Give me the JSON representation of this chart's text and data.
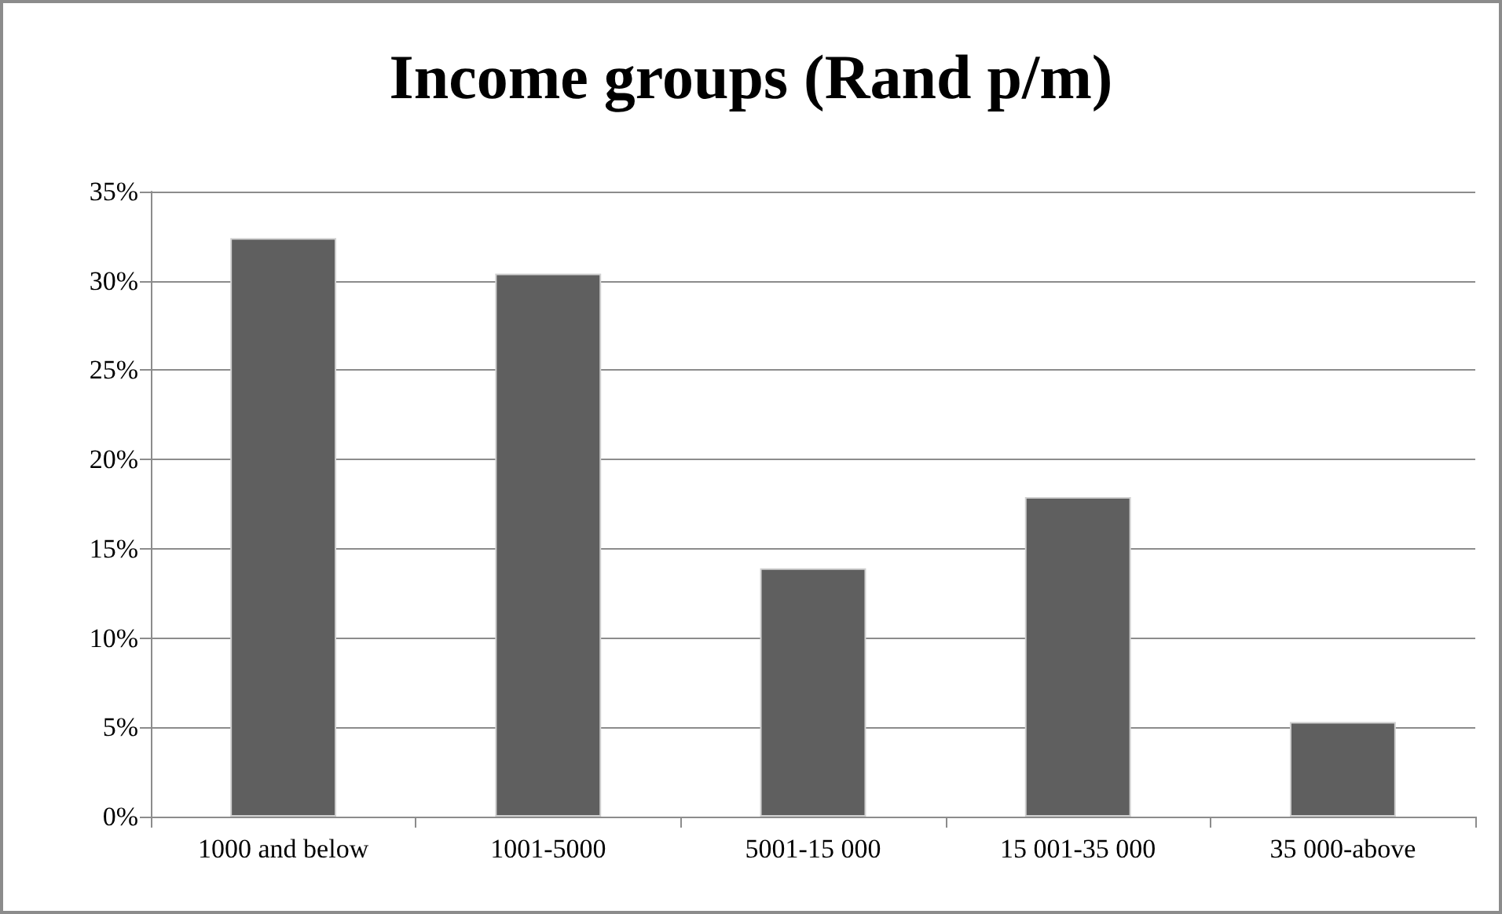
{
  "chart_data": {
    "type": "bar",
    "title": "Income groups (Rand p/m)",
    "categories": [
      "1000 and below",
      "1001-5000",
      "5001-15 000",
      "15 001-35 000",
      "35 000-above"
    ],
    "values": [
      32.4,
      30.4,
      13.9,
      17.9,
      5.3
    ],
    "color": "#5f5f5f",
    "ylim": [
      0,
      35
    ],
    "yticks": [
      {
        "value": 0,
        "label": "0%"
      },
      {
        "value": 5,
        "label": "5%"
      },
      {
        "value": 10,
        "label": "10%"
      },
      {
        "value": 15,
        "label": "15%"
      },
      {
        "value": 20,
        "label": "20%"
      },
      {
        "value": 25,
        "label": "25%"
      },
      {
        "value": 30,
        "label": "30%"
      },
      {
        "value": 35,
        "label": "35%"
      }
    ],
    "grid": "y"
  }
}
